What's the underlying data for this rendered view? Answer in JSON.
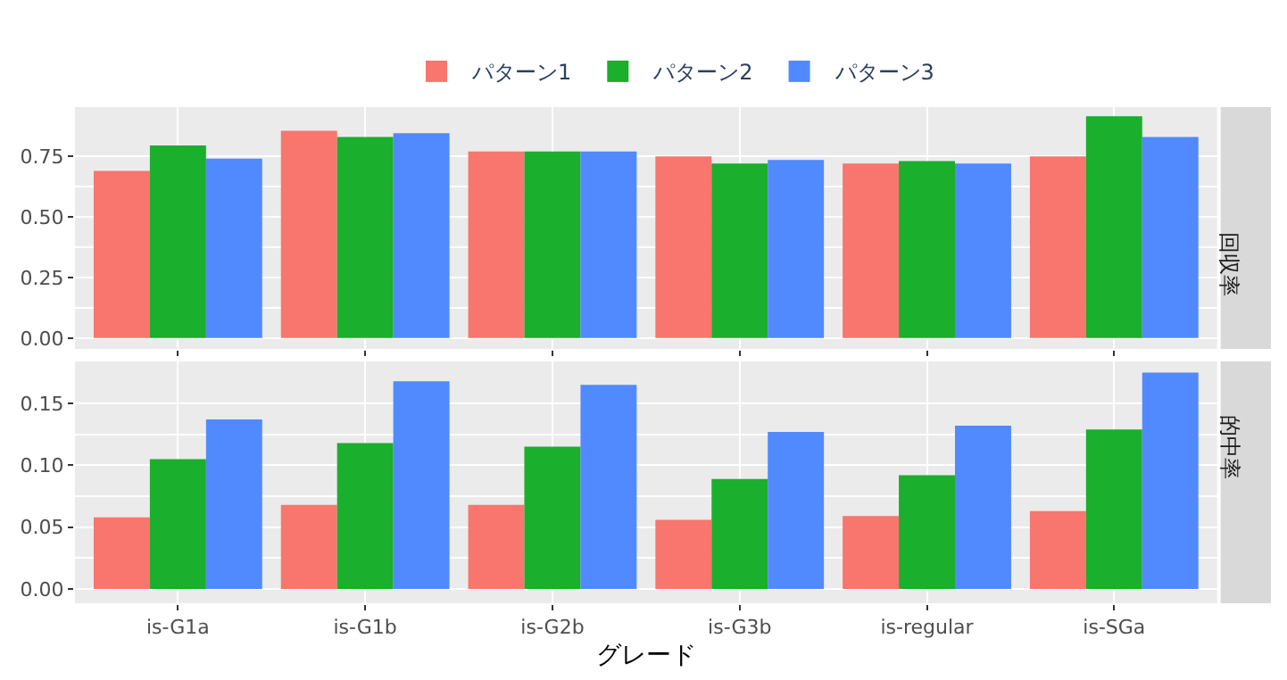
{
  "chart_data": [
    {
      "type": "bar",
      "title": "回収率",
      "categories": [
        "is-G1a",
        "is-G1b",
        "is-G2b",
        "is-G3b",
        "is-regular",
        "is-SGa"
      ],
      "series": [
        {
          "name": "パターン1",
          "color": "#f8766d",
          "values": [
            0.69,
            0.855,
            0.77,
            0.75,
            0.72,
            0.75
          ]
        },
        {
          "name": "パターン2",
          "color": "#1aaf2c",
          "values": [
            0.795,
            0.83,
            0.77,
            0.72,
            0.73,
            0.915
          ]
        },
        {
          "name": "パターン3",
          "color": "#518aff",
          "values": [
            0.74,
            0.845,
            0.77,
            0.735,
            0.72,
            0.83
          ]
        }
      ],
      "ylim": [
        -0.045,
        0.953
      ],
      "yticks": [
        {
          "value": 0,
          "label": "0.00"
        },
        {
          "value": 0.25,
          "label": "0.25"
        },
        {
          "value": 0.5,
          "label": "0.50"
        },
        {
          "value": 0.75,
          "label": "0.75"
        }
      ],
      "grid": true,
      "legend": "top",
      "tick_labels": "y"
    },
    {
      "type": "bar",
      "title": "的中率",
      "xlabel": "グレード",
      "categories": [
        "is-G1a",
        "is-G1b",
        "is-G2b",
        "is-G3b",
        "is-regular",
        "is-SGa"
      ],
      "series": [
        {
          "name": "パターン1",
          "color": "#f8766d",
          "values": [
            0.058,
            0.068,
            0.068,
            0.056,
            0.059,
            0.063
          ]
        },
        {
          "name": "パターン2",
          "color": "#1aaf2c",
          "values": [
            0.105,
            0.118,
            0.115,
            0.089,
            0.092,
            0.129
          ]
        },
        {
          "name": "パターン3",
          "color": "#518aff",
          "values": [
            0.137,
            0.168,
            0.165,
            0.127,
            0.132,
            0.175
          ]
        }
      ],
      "ylim": [
        -0.0115,
        0.184
      ],
      "yticks": [
        {
          "value": 0,
          "label": "0.00"
        },
        {
          "value": 0.05,
          "label": "0.05"
        },
        {
          "value": 0.1,
          "label": "0.10"
        },
        {
          "value": 0.15,
          "label": "0.15"
        }
      ],
      "grid": true,
      "legend": "top"
    }
  ]
}
